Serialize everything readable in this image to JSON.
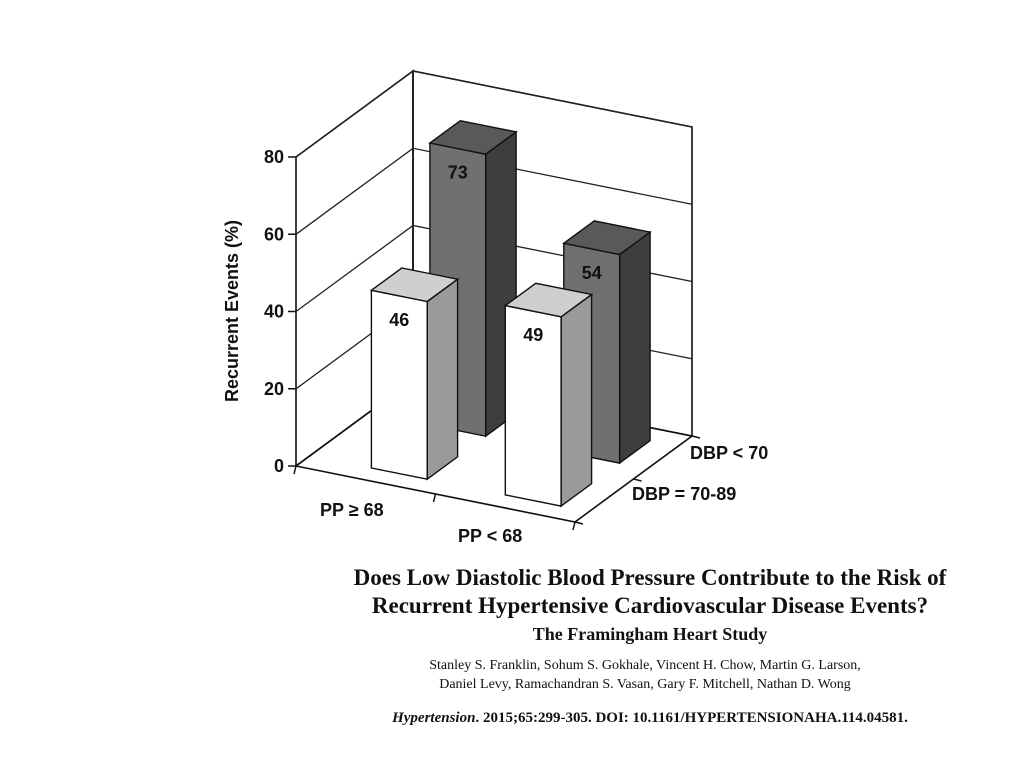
{
  "chart_data": {
    "type": "bar",
    "ylabel": "Recurrent Events (%)",
    "ylim": [
      0,
      80
    ],
    "yticks": [
      "0",
      "20",
      "40",
      "60",
      "80"
    ],
    "x_categories": [
      "PP ≥ 68",
      "PP < 68"
    ],
    "depth_categories": [
      "DBP = 70-89",
      "DBP < 70"
    ],
    "series": [
      {
        "name": "DBP = 70-89",
        "values": [
          46,
          49
        ],
        "color": "#ffffff"
      },
      {
        "name": "DBP < 70",
        "values": [
          73,
          54
        ],
        "color": "#6e6e6e"
      }
    ],
    "data_labels": [
      "46",
      "49",
      "73",
      "54"
    ],
    "grid": true
  },
  "article": {
    "title_line1": "Does Low Diastolic Blood Pressure Contribute to the Risk of",
    "title_line2": "Recurrent Hypertensive Cardiovascular Disease Events?",
    "subtitle": "The Framingham Heart Study",
    "authors_line1": "Stanley S. Franklin, Sohum S. Gokhale, Vincent H. Chow, Martin G. Larson,",
    "authors_line2": "Daniel Levy, Ramachandran S. Vasan, Gary F. Mitchell, Nathan D. Wong",
    "journal": "Hypertension",
    "citation_rest": ". 2015;65:299-305. DOI: 10.1161/HYPERTENSIONAHA.114.04581."
  }
}
